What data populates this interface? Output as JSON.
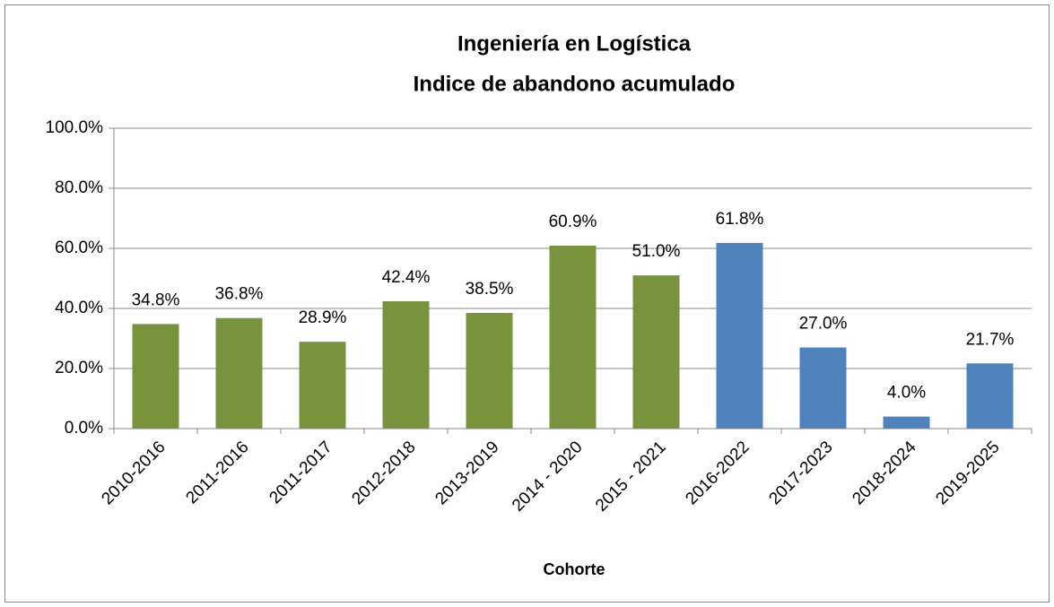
{
  "chart_data": {
    "type": "bar",
    "title": "Ingeniería en Logística",
    "subtitle": "Indice de abandono acumulado",
    "x_label": "Cohorte",
    "categories": [
      "2010-2016",
      "2011-2016",
      "2011-2017",
      "2012-2018",
      "2013-2019",
      "2014 - 2020",
      "2015 - 2021",
      "2016-2022",
      "2017-2023",
      "2018-2024",
      "2019-2025"
    ],
    "values": [
      34.8,
      36.8,
      28.9,
      42.4,
      38.5,
      60.9,
      51.0,
      61.8,
      27.0,
      4.0,
      21.7
    ],
    "value_labels": [
      "34.8%",
      "36.8%",
      "28.9%",
      "42.4%",
      "38.5%",
      "60.9%",
      "51.0%",
      "61.8%",
      "27.0%",
      "4.0%",
      "21.7%"
    ],
    "colors": [
      "#77933c",
      "#77933c",
      "#77933c",
      "#77933c",
      "#77933c",
      "#77933c",
      "#77933c",
      "#4f81bd",
      "#4f81bd",
      "#4f81bd",
      "#4f81bd"
    ],
    "ylim": [
      0,
      100
    ],
    "yticks": [
      {
        "value": 0,
        "label": "0.0%"
      },
      {
        "value": 20,
        "label": "20.0%"
      },
      {
        "value": 40,
        "label": "40.0%"
      },
      {
        "value": 60,
        "label": "60.0%"
      },
      {
        "value": 80,
        "label": "80.0%"
      },
      {
        "value": 100,
        "label": "100.0%"
      }
    ],
    "grid": true
  }
}
